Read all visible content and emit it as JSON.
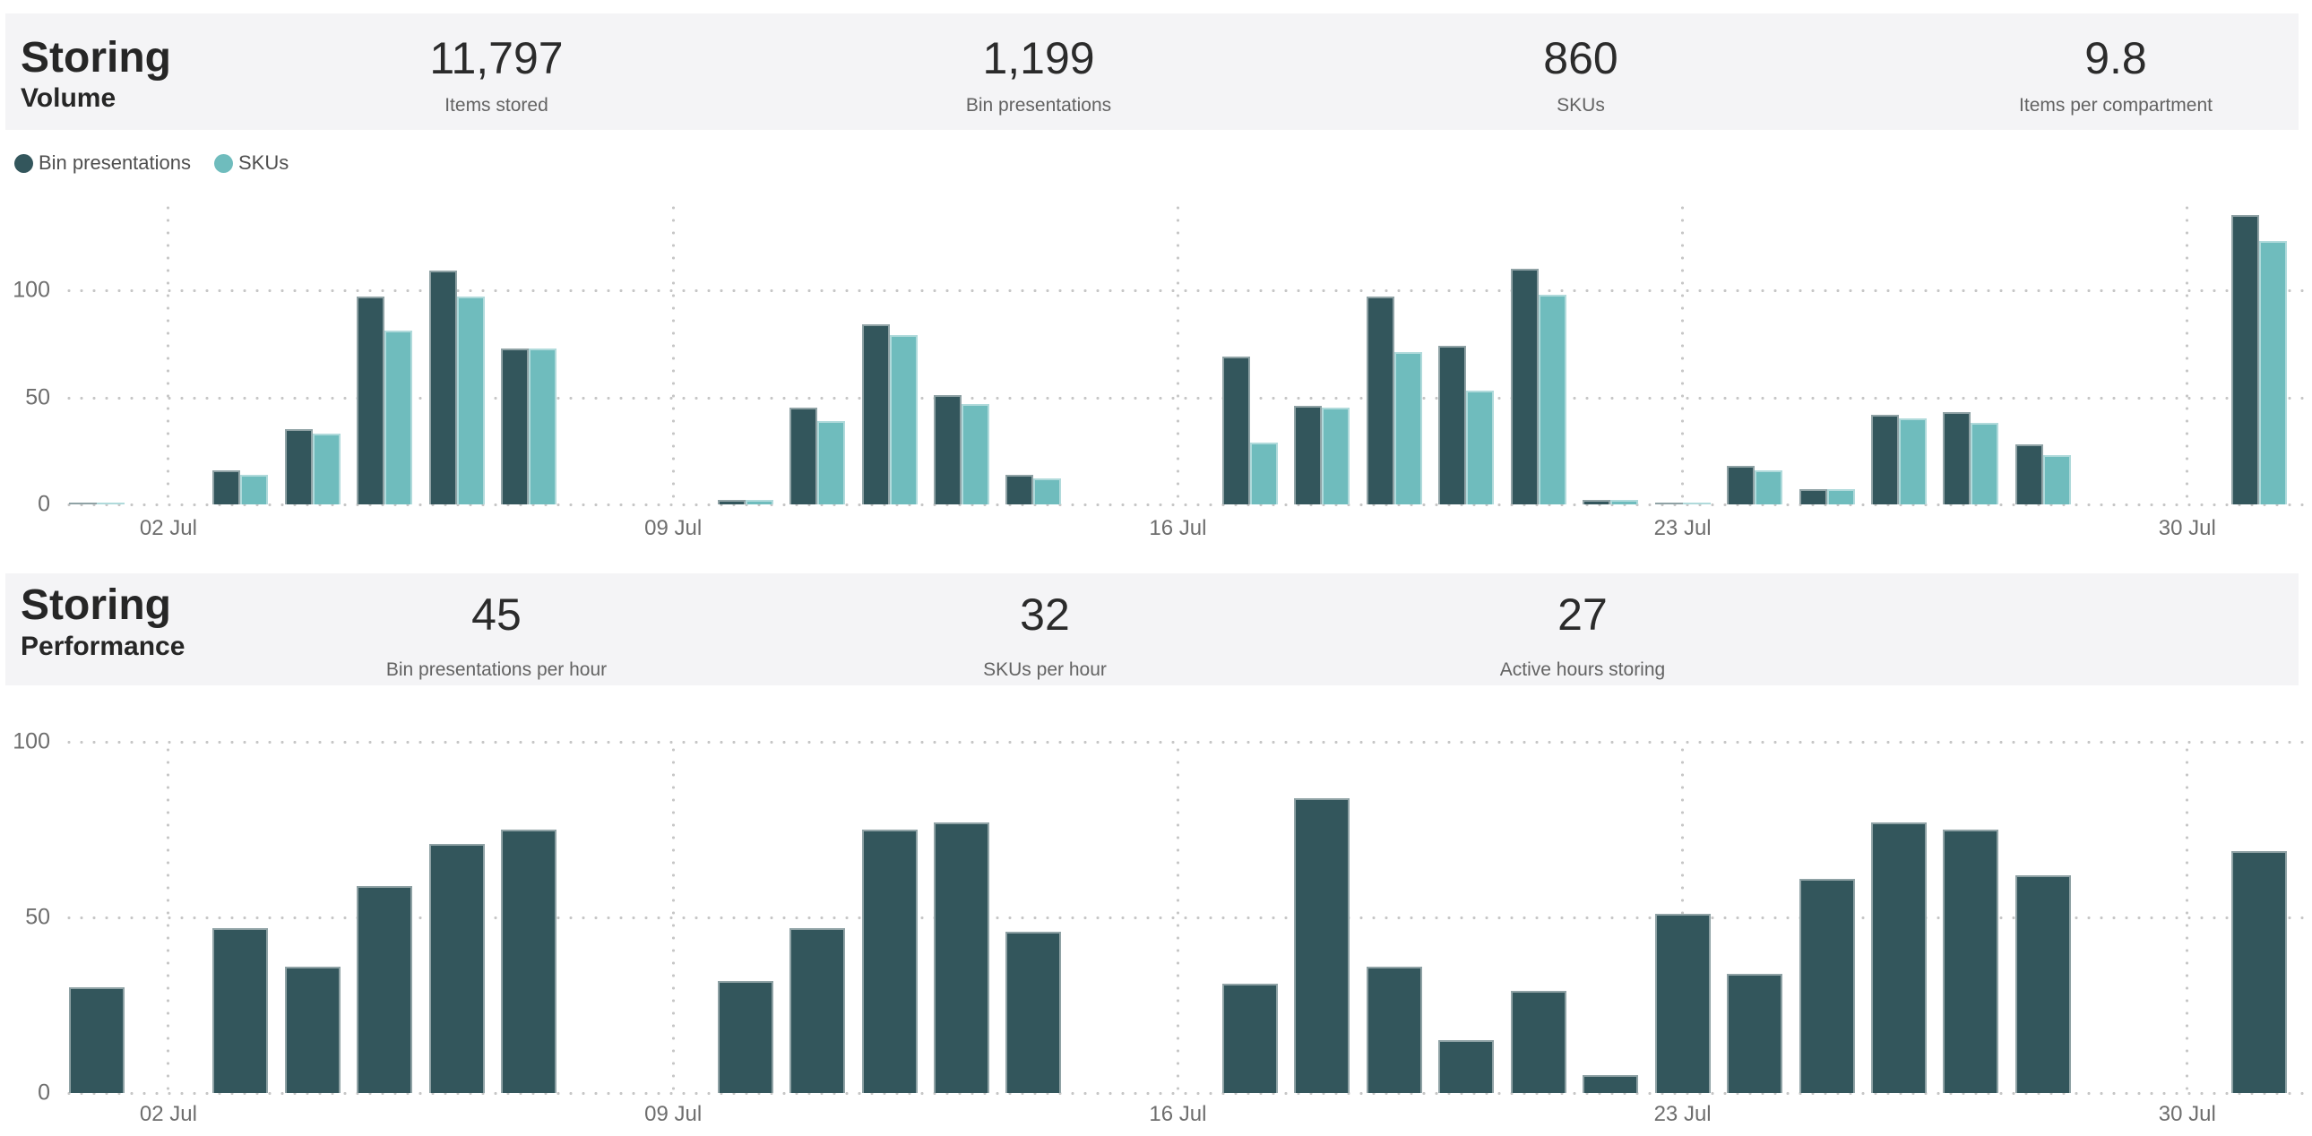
{
  "sections": [
    {
      "title_line1": "Storing",
      "title_line2": "Volume",
      "kpis": [
        {
          "value": "11,797",
          "label": "Items stored"
        },
        {
          "value": "1,199",
          "label": "Bin presentations"
        },
        {
          "value": "860",
          "label": "SKUs"
        },
        {
          "value": "9.8",
          "label": "Items per compartment"
        }
      ]
    },
    {
      "title_line1": "Storing",
      "title_line2": "Performance",
      "kpis": [
        {
          "value": "45",
          "label": "Bin presentations per hour"
        },
        {
          "value": "32",
          "label": "SKUs per hour"
        },
        {
          "value": "27",
          "label": "Active hours storing"
        }
      ]
    }
  ],
  "legend": [
    {
      "label": "Bin presentations",
      "color": "#33565c"
    },
    {
      "label": "SKUs",
      "color": "#6fbcbd"
    }
  ],
  "colors": {
    "band_background": "#f4f4f6",
    "series_dark": "#33565c",
    "series_light": "#6fbcbd",
    "grid_dot": "#c7c7c7",
    "axis_text": "#6e6e6e",
    "kpi_number": "#2b2b2b",
    "kpi_label": "#636363"
  },
  "chart_data": [
    {
      "type": "bar",
      "title": "Storing Volume by day",
      "categories": [
        "01 Jul",
        "03 Jul",
        "04 Jul",
        "05 Jul",
        "06 Jul",
        "07 Jul",
        "10 Jul",
        "11 Jul",
        "12 Jul",
        "13 Jul",
        "14 Jul",
        "17 Jul",
        "18 Jul",
        "19 Jul",
        "20 Jul",
        "21 Jul",
        "22 Jul",
        "23 Jul",
        "24 Jul",
        "25 Jul",
        "26 Jul",
        "27 Jul",
        "28 Jul",
        "31 Jul"
      ],
      "series": [
        {
          "name": "Bin presentations",
          "color": "#33565c",
          "values": [
            1,
            16,
            35,
            97,
            109,
            73,
            2,
            45,
            84,
            51,
            14,
            69,
            46,
            97,
            74,
            110,
            2,
            1,
            18,
            7,
            42,
            43,
            28,
            135
          ]
        },
        {
          "name": "SKUs",
          "color": "#6fbcbd",
          "values": [
            1,
            14,
            33,
            81,
            97,
            73,
            2,
            39,
            79,
            47,
            12,
            29,
            45,
            71,
            53,
            98,
            2,
            1,
            16,
            7,
            40,
            38,
            23,
            123
          ]
        }
      ],
      "x_tick_labels": [
        "02 Jul",
        "09 Jul",
        "16 Jul",
        "23 Jul",
        "30 Jul"
      ],
      "x_domain": [
        "01 Jul",
        "31 Jul"
      ],
      "y_ticks": [
        0,
        50,
        100
      ],
      "ylim": [
        0,
        140
      ],
      "grid": "dotted",
      "legend_position": "top-left"
    },
    {
      "type": "bar",
      "title": "Storing Performance by day",
      "categories": [
        "01 Jul",
        "03 Jul",
        "04 Jul",
        "05 Jul",
        "06 Jul",
        "07 Jul",
        "10 Jul",
        "11 Jul",
        "12 Jul",
        "13 Jul",
        "14 Jul",
        "17 Jul",
        "18 Jul",
        "19 Jul",
        "20 Jul",
        "21 Jul",
        "22 Jul",
        "23 Jul",
        "24 Jul",
        "25 Jul",
        "26 Jul",
        "27 Jul",
        "28 Jul",
        "31 Jul"
      ],
      "series": [
        {
          "name": "Bin presentations per hour",
          "color": "#33565c",
          "values": [
            30,
            47,
            36,
            59,
            71,
            75,
            32,
            47,
            75,
            77,
            46,
            31,
            84,
            36,
            15,
            29,
            5,
            51,
            34,
            61,
            77,
            75,
            62,
            69
          ]
        }
      ],
      "x_tick_labels": [
        "02 Jul",
        "09 Jul",
        "16 Jul",
        "23 Jul",
        "30 Jul"
      ],
      "x_domain": [
        "01 Jul",
        "31 Jul"
      ],
      "y_ticks": [
        0,
        50,
        100
      ],
      "ylim": [
        0,
        110
      ],
      "grid": "dotted",
      "legend_position": "none"
    }
  ]
}
